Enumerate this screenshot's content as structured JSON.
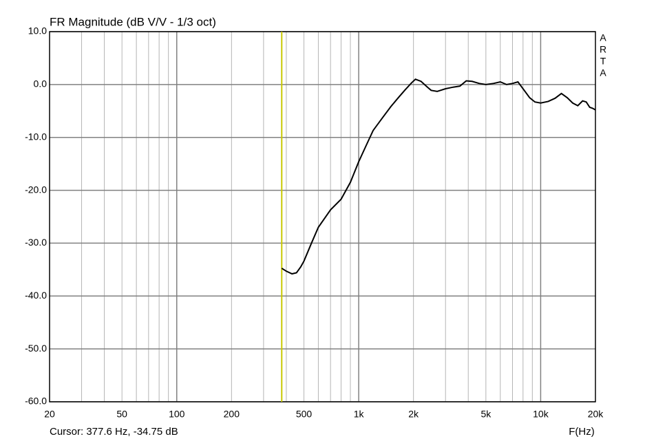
{
  "chart_data": {
    "type": "line",
    "title": "FR Magnitude (dB V/V - 1/3 oct)",
    "x_label": "F(Hz)",
    "side_label": [
      "A",
      "R",
      "T",
      "A"
    ],
    "log_x": true,
    "grid": true,
    "xlim": [
      20,
      20000
    ],
    "ylim": [
      -60,
      10
    ],
    "xticks": [
      20,
      50,
      100,
      200,
      500,
      {
        "value": 1000,
        "label": "1k"
      },
      {
        "value": 2000,
        "label": "2k"
      },
      {
        "value": 5000,
        "label": "5k"
      },
      {
        "value": 10000,
        "label": "10k"
      },
      {
        "value": 20000,
        "label": "20k"
      }
    ],
    "minor_xticks": [
      30,
      40,
      60,
      70,
      80,
      90,
      300,
      400,
      600,
      700,
      800,
      900,
      3000,
      4000,
      6000,
      7000,
      8000,
      9000
    ],
    "yticks": [
      {
        "value": 10,
        "label": "10.0"
      },
      {
        "value": 0,
        "label": "0.0"
      },
      {
        "value": -10,
        "label": "-10.0"
      },
      {
        "value": -20,
        "label": "-20.0"
      },
      {
        "value": -30,
        "label": "-30.0"
      },
      {
        "value": -40,
        "label": "-40.0"
      },
      {
        "value": -50,
        "label": "-50.0"
      },
      {
        "value": -60,
        "label": "-60.0"
      }
    ],
    "cursor": {
      "x": 377.6,
      "color": "#c8c800",
      "label": "Cursor: 377.6 Hz, -34.75 dB"
    },
    "series": [
      {
        "color": "#000000",
        "x": [
          377.6,
          400,
          430,
          455,
          480,
          500,
          550,
          600,
          700,
          800,
          900,
          1000,
          1100,
          1200,
          1350,
          1500,
          1650,
          1800,
          1950,
          2050,
          2200,
          2350,
          2500,
          2700,
          3000,
          3300,
          3600,
          3900,
          4200,
          4600,
          5000,
          5500,
          6000,
          6500,
          7000,
          7500,
          8000,
          8700,
          9300,
          10000,
          11000,
          12000,
          13000,
          14000,
          15000,
          16000,
          17000,
          17800,
          18600,
          19300,
          20000
        ],
        "values": [
          -34.75,
          -35.3,
          -35.8,
          -35.6,
          -34.5,
          -33.4,
          -30,
          -27,
          -23.7,
          -21.7,
          -18.5,
          -14.6,
          -11.5,
          -8.7,
          -6.3,
          -4.2,
          -2.5,
          -1,
          0.3,
          1,
          0.6,
          -0.3,
          -1.1,
          -1.3,
          -0.8,
          -0.5,
          -0.3,
          0.7,
          0.6,
          0.2,
          0,
          0.2,
          0.5,
          0,
          0.2,
          0.5,
          -0.8,
          -2.5,
          -3.3,
          -3.5,
          -3.2,
          -2.6,
          -1.7,
          -2.5,
          -3.5,
          -4,
          -3.1,
          -3.3,
          -4.3,
          -4.5,
          -4.8
        ]
      }
    ]
  }
}
